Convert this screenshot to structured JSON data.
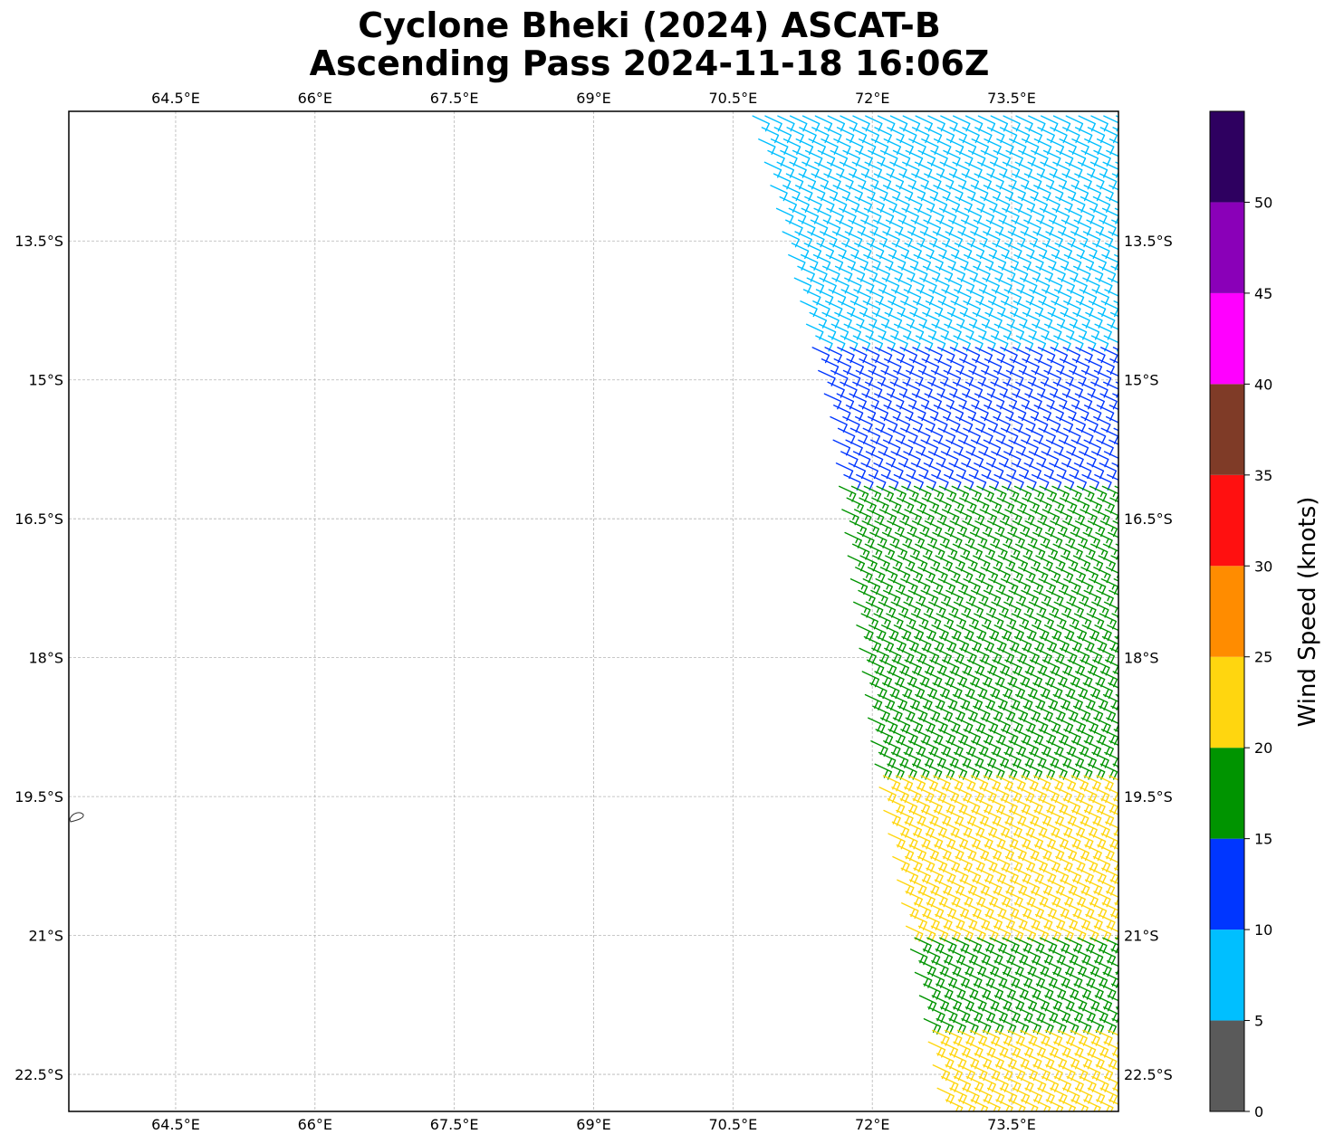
{
  "title_line1": "Cyclone Bheki (2024) ASCAT-B",
  "title_line2": "Ascending Pass 2024-11-18 16:06Z",
  "chart_data": {
    "type": "wind_barbs",
    "lon_range": [
      63.35,
      74.65
    ],
    "lat_range": [
      -22.9,
      -12.1
    ],
    "lon_ticks": [
      "64.5°E",
      "66°E",
      "67.5°E",
      "69°E",
      "70.5°E",
      "72°E",
      "73.5°E"
    ],
    "lon_tick_values": [
      64.5,
      66,
      67.5,
      69,
      70.5,
      72,
      73.5
    ],
    "lat_ticks": [
      "13.5°S",
      "15°S",
      "16.5°S",
      "18°S",
      "19.5°S",
      "21°S",
      "22.5°S"
    ],
    "lat_tick_values": [
      -13.5,
      -15,
      -16.5,
      -18,
      -19.5,
      -21,
      -22.5
    ],
    "grid": true,
    "colorbar": {
      "label": "Wind Speed (knots)",
      "ticks": [
        "0",
        "5",
        "10",
        "15",
        "20",
        "25",
        "30",
        "35",
        "40",
        "45",
        "50"
      ],
      "bins": [
        {
          "min": 0,
          "max": 5,
          "color": "#5a5a5a"
        },
        {
          "min": 5,
          "max": 10,
          "color": "#00bfff"
        },
        {
          "min": 10,
          "max": 15,
          "color": "#0036ff"
        },
        {
          "min": 15,
          "max": 20,
          "color": "#009400"
        },
        {
          "min": 20,
          "max": 25,
          "color": "#ffd60f"
        },
        {
          "min": 25,
          "max": 30,
          "color": "#ff8c00"
        },
        {
          "min": 30,
          "max": 35,
          "color": "#ff1010"
        },
        {
          "min": 35,
          "max": 40,
          "color": "#7f3b27"
        },
        {
          "min": 40,
          "max": 45,
          "color": "#ff00ff"
        },
        {
          "min": 45,
          "max": 50,
          "color": "#8a00b8"
        },
        {
          "min": 50,
          "max": 55,
          "color": "#2e0060"
        }
      ]
    },
    "swath": {
      "west_edge": [
        [
          -12.1,
          70.7
        ],
        [
          -15.4,
          71.55
        ],
        [
          -19.0,
          72.0
        ],
        [
          -22.9,
          72.75
        ]
      ],
      "speed_zones": [
        {
          "lat_min": -14.6,
          "lat_max": -12.1,
          "speed": 8
        },
        {
          "lat_min": -16.1,
          "lat_max": -14.6,
          "speed": 12
        },
        {
          "lat_min": -17.6,
          "lat_max": -16.1,
          "speed": 17
        },
        {
          "lat_min": -19.2,
          "lat_max": -17.6,
          "speed": 19
        },
        {
          "lat_min": -21.0,
          "lat_max": -19.2,
          "speed": 22
        },
        {
          "lat_min": -22.0,
          "lat_max": -21.0,
          "speed": 18
        },
        {
          "lat_min": -22.9,
          "lat_max": -22.0,
          "speed": 21
        }
      ],
      "wind_direction_deg": 115
    }
  }
}
